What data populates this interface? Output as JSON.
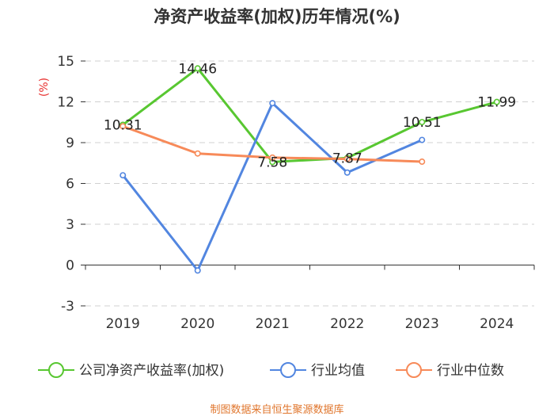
{
  "chart_data": {
    "type": "line",
    "title": "净资产收益率(加权)历年情况(%)",
    "ylabel": "(%)",
    "categories": [
      "2019",
      "2020",
      "2021",
      "2022",
      "2023",
      "2024"
    ],
    "ylim": [
      -3,
      15
    ],
    "yticks": [
      -3,
      0,
      3,
      6,
      9,
      12,
      15
    ],
    "grid": true,
    "legend_position": "bottom",
    "series": [
      {
        "name": "公司净资产收益率(加权)",
        "color": "#58c731",
        "values": [
          10.31,
          14.46,
          7.58,
          7.87,
          10.51,
          11.99
        ],
        "labels": [
          "10.31",
          "14.46",
          "7.58",
          "7.87",
          "10.51",
          "11.99"
        ]
      },
      {
        "name": "行业均值",
        "color": "#5286e0",
        "values": [
          6.6,
          -0.4,
          11.9,
          6.8,
          9.2,
          null
        ]
      },
      {
        "name": "行业中位数",
        "color": "#f78a59",
        "values": [
          10.2,
          8.2,
          7.9,
          7.8,
          7.6,
          null
        ]
      }
    ],
    "source": "制图数据来自恒生聚源数据库"
  }
}
